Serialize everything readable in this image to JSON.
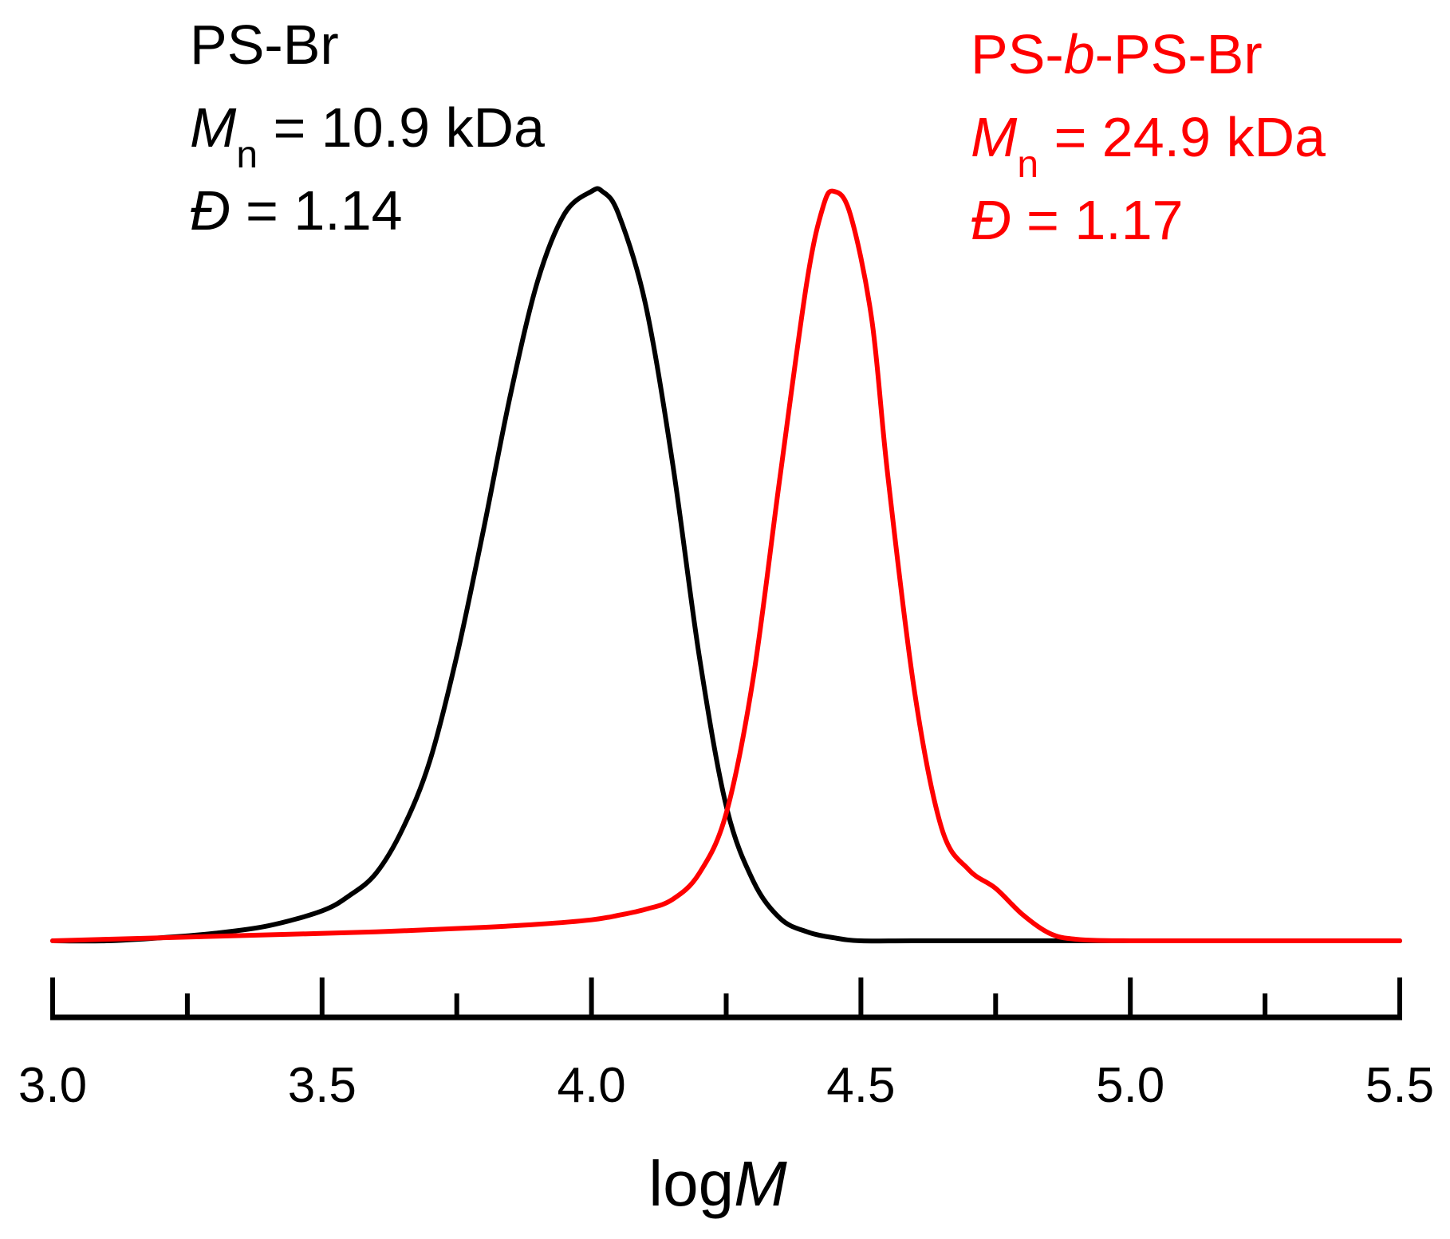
{
  "chart_data": {
    "type": "line",
    "title": "",
    "xlabel": "logM",
    "xlabel_prefix": "log",
    "xlabel_italic": "M",
    "ylabel": "",
    "xlim": [
      3.0,
      5.5
    ],
    "ylim": [
      0,
      1.0
    ],
    "grid": false,
    "x_ticks": [
      3.0,
      3.5,
      4.0,
      4.5,
      5.0,
      5.5
    ],
    "x_tick_labels": [
      "3.0",
      "3.5",
      "4.0",
      "4.5",
      "5.0",
      "5.5"
    ],
    "x_minor_ticks": [
      3.25,
      3.75,
      4.25,
      4.75,
      5.25
    ],
    "series": [
      {
        "name": "PS-Br",
        "color": "#000000",
        "annotation": {
          "name_parts": [
            {
              "text": "PS-Br",
              "italic": false
            }
          ],
          "mn_symbol": "M",
          "mn_subscript": "n",
          "mn_text": " = 10.9 kDa",
          "dispersity_symbol": "Đ",
          "dispersity_text": " = 1.14"
        },
        "x": [
          3.0,
          3.1,
          3.2,
          3.3,
          3.4,
          3.5,
          3.55,
          3.6,
          3.65,
          3.7,
          3.75,
          3.8,
          3.85,
          3.9,
          3.95,
          4.0,
          4.02,
          4.05,
          4.1,
          4.15,
          4.2,
          4.25,
          4.3,
          4.35,
          4.4,
          4.45,
          4.5,
          4.6,
          4.8,
          5.0,
          5.2,
          5.5
        ],
        "values": [
          0.0,
          0.0,
          0.004,
          0.01,
          0.02,
          0.04,
          0.06,
          0.09,
          0.15,
          0.24,
          0.38,
          0.55,
          0.73,
          0.88,
          0.97,
          1.0,
          1.0,
          0.97,
          0.85,
          0.64,
          0.38,
          0.18,
          0.08,
          0.03,
          0.012,
          0.004,
          0.0,
          0.0,
          0.0,
          0.0,
          0.0,
          0.0
        ]
      },
      {
        "name": "PS-b-PS-Br",
        "color": "#ff0000",
        "annotation": {
          "name_parts": [
            {
              "text": "PS-",
              "italic": false
            },
            {
              "text": "b",
              "italic": true
            },
            {
              "text": "-PS-Br",
              "italic": false
            }
          ],
          "mn_symbol": "M",
          "mn_subscript": "n",
          "mn_text": " = 24.9 kDa",
          "dispersity_symbol": "Đ",
          "dispersity_text": " = 1.17"
        },
        "x": [
          3.0,
          3.2,
          3.4,
          3.6,
          3.8,
          3.9,
          4.0,
          4.05,
          4.1,
          4.15,
          4.2,
          4.25,
          4.3,
          4.35,
          4.4,
          4.43,
          4.45,
          4.48,
          4.52,
          4.55,
          4.6,
          4.65,
          4.7,
          4.75,
          4.8,
          4.85,
          4.9,
          5.0,
          5.2,
          5.5
        ],
        "values": [
          0.0,
          0.004,
          0.008,
          0.012,
          0.018,
          0.022,
          0.028,
          0.034,
          0.042,
          0.055,
          0.09,
          0.17,
          0.35,
          0.62,
          0.88,
          0.98,
          1.0,
          0.97,
          0.83,
          0.62,
          0.33,
          0.15,
          0.095,
          0.07,
          0.035,
          0.01,
          0.002,
          0.0,
          0.0,
          0.0
        ]
      }
    ]
  }
}
